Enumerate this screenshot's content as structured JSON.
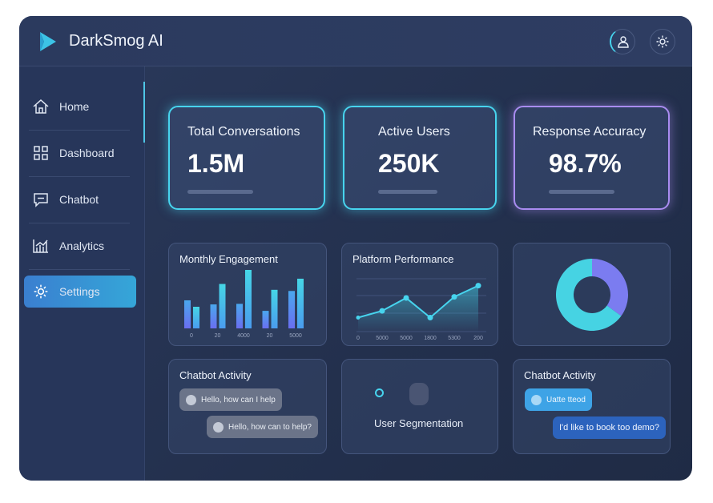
{
  "header": {
    "brand": "DarkSmog AI",
    "icons": [
      "logo-play-icon",
      "user-icon",
      "gear-icon"
    ]
  },
  "sidebar": {
    "items": [
      {
        "label": "Home",
        "icon": "home-icon"
      },
      {
        "label": "Dashboard",
        "icon": "grid-icon"
      },
      {
        "label": "Chatbot",
        "icon": "chat-icon"
      },
      {
        "label": "Analytics",
        "icon": "bar-chart-icon"
      },
      {
        "label": "Settings",
        "icon": "gear-icon",
        "active": true
      }
    ]
  },
  "kpis": [
    {
      "title": "Total Conversations",
      "value": "1.5M",
      "accent": "#47d4ee"
    },
    {
      "title": "Active Users",
      "value": "250K",
      "accent": "#47d4ee"
    },
    {
      "title": "Response Accuracy",
      "value": "98.7%",
      "accent": "#a98cf0"
    }
  ],
  "panels": {
    "monthly": {
      "title": "Monthly Engagement"
    },
    "platform": {
      "title": "Platform Performance"
    },
    "chat1": {
      "title": "Chatbot Activity",
      "messages": [
        "Hello, how can I help",
        "Hello, how can to help?"
      ]
    },
    "segment": {
      "title": "User Segmentation"
    },
    "chat2": {
      "title": "Chatbot Activity",
      "messages": [
        "Uatte ttеod",
        "I'd like to book tоo demo?"
      ]
    }
  },
  "chart_data": [
    {
      "type": "bar",
      "title": "Monthly Engagement",
      "categories": [
        "0",
        "20",
        "4000",
        "20",
        "5000"
      ],
      "series": [
        {
          "values": [
            48,
            41,
            42,
            30,
            64
          ]
        },
        {
          "values": [
            37,
            76,
            100,
            66,
            85
          ]
        }
      ]
    },
    {
      "type": "line",
      "title": "Platform Performance",
      "categories": [
        "0",
        "5000",
        "5000",
        "1800",
        "5300",
        "200"
      ],
      "values": [
        25,
        37,
        60,
        25,
        62,
        82
      ],
      "ylim": [
        0,
        100
      ]
    },
    {
      "type": "pie",
      "values": [
        35,
        65
      ],
      "colors": [
        "#7b7cf0",
        "#46d3e3"
      ]
    }
  ]
}
